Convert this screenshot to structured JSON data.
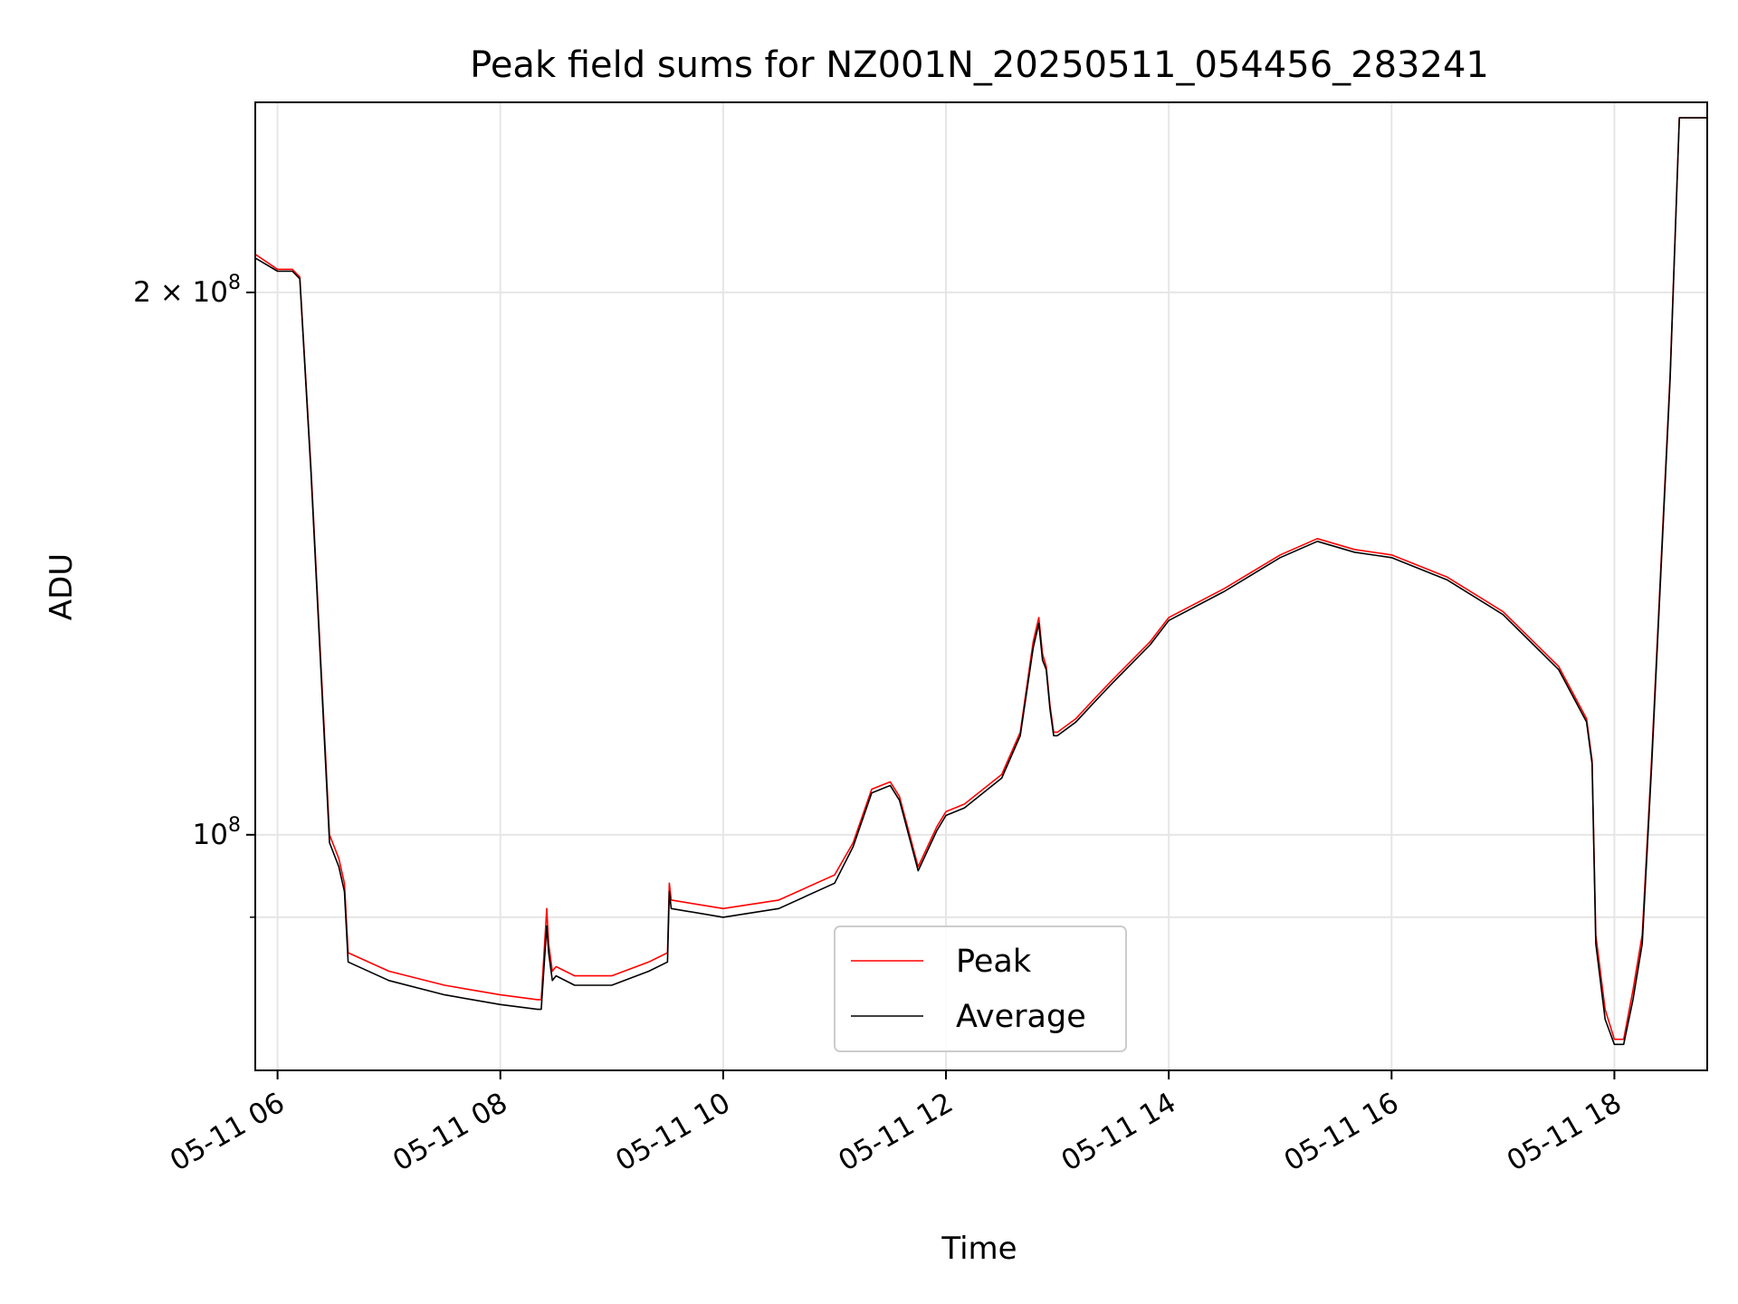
{
  "chart_data": {
    "type": "line",
    "title": "Peak field sums for NZ001N_20250511_054456_283241",
    "xlabel": "Time",
    "ylabel": "ADU",
    "y_scale": "log",
    "ylim": [
      74000000,
      255000000
    ],
    "xlim": [
      "2025-05-11 05:48",
      "2025-05-11 18:50"
    ],
    "grid": true,
    "legend_position": "lower center",
    "x_ticks": [
      {
        "value": "2025-05-11 06:00",
        "label": "05-11 06"
      },
      {
        "value": "2025-05-11 08:00",
        "label": "05-11 08"
      },
      {
        "value": "2025-05-11 10:00",
        "label": "05-11 10"
      },
      {
        "value": "2025-05-11 12:00",
        "label": "05-11 12"
      },
      {
        "value": "2025-05-11 14:00",
        "label": "05-11 14"
      },
      {
        "value": "2025-05-11 16:00",
        "label": "05-11 16"
      },
      {
        "value": "2025-05-11 18:00",
        "label": "05-11 18"
      }
    ],
    "y_ticks": [
      {
        "value": 100000000,
        "base": "10",
        "exp": "8",
        "label": "10^8"
      },
      {
        "value": 200000000,
        "mant": "2 × ",
        "base": "10",
        "exp": "8",
        "label": "2 × 10^8"
      }
    ],
    "y_minor_ticks": [
      90000000
    ],
    "series": [
      {
        "name": "Peak",
        "color": "#ff0000",
        "x": [
          "2025-05-11 05:48",
          "2025-05-11 06:00",
          "2025-05-11 06:08",
          "2025-05-11 06:12",
          "2025-05-11 06:18",
          "2025-05-11 06:26",
          "2025-05-11 06:28",
          "2025-05-11 06:33",
          "2025-05-11 06:36",
          "2025-05-11 06:38",
          "2025-05-11 07:00",
          "2025-05-11 07:30",
          "2025-05-11 08:00",
          "2025-05-11 08:20",
          "2025-05-11 08:22",
          "2025-05-11 08:25",
          "2025-05-11 08:26",
          "2025-05-11 08:28",
          "2025-05-11 08:30",
          "2025-05-11 08:40",
          "2025-05-11 09:00",
          "2025-05-11 09:20",
          "2025-05-11 09:30",
          "2025-05-11 09:31",
          "2025-05-11 09:32",
          "2025-05-11 10:00",
          "2025-05-11 10:30",
          "2025-05-11 11:00",
          "2025-05-11 11:10",
          "2025-05-11 11:20",
          "2025-05-11 11:30",
          "2025-05-11 11:35",
          "2025-05-11 11:45",
          "2025-05-11 11:55",
          "2025-05-11 12:00",
          "2025-05-11 12:10",
          "2025-05-11 12:20",
          "2025-05-11 12:30",
          "2025-05-11 12:40",
          "2025-05-11 12:47",
          "2025-05-11 12:50",
          "2025-05-11 12:52",
          "2025-05-11 12:54",
          "2025-05-11 12:56",
          "2025-05-11 12:58",
          "2025-05-11 13:00",
          "2025-05-11 13:10",
          "2025-05-11 13:20",
          "2025-05-11 13:30",
          "2025-05-11 13:50",
          "2025-05-11 14:00",
          "2025-05-11 14:30",
          "2025-05-11 15:00",
          "2025-05-11 15:20",
          "2025-05-11 15:30",
          "2025-05-11 15:40",
          "2025-05-11 16:00",
          "2025-05-11 16:30",
          "2025-05-11 17:00",
          "2025-05-11 17:30",
          "2025-05-11 17:45",
          "2025-05-11 17:48",
          "2025-05-11 17:50",
          "2025-05-11 17:55",
          "2025-05-11 18:00",
          "2025-05-11 18:05",
          "2025-05-11 18:10",
          "2025-05-11 18:15",
          "2025-05-11 18:20",
          "2025-05-11 18:30",
          "2025-05-11 18:35",
          "2025-05-11 18:50"
        ],
        "y": [
          210000000,
          206000000,
          206000000,
          204000000,
          160000000,
          110000000,
          100000000,
          97000000,
          94000000,
          86000000,
          84000000,
          82500000,
          81500000,
          81000000,
          81000000,
          91000000,
          87000000,
          84000000,
          84500000,
          83500000,
          83500000,
          85000000,
          86000000,
          94000000,
          92000000,
          91000000,
          92000000,
          95000000,
          99000000,
          106000000,
          107000000,
          105000000,
          96000000,
          101000000,
          103000000,
          104000000,
          106000000,
          108000000,
          114000000,
          128000000,
          132000000,
          126000000,
          124000000,
          118000000,
          114000000,
          114000000,
          116000000,
          119000000,
          122000000,
          128000000,
          132000000,
          137000000,
          143000000,
          146000000,
          145000000,
          144000000,
          143000000,
          139000000,
          133000000,
          124000000,
          116000000,
          110000000,
          88000000,
          80000000,
          77000000,
          77000000,
          82000000,
          88000000,
          110000000,
          180000000,
          250000000,
          250000000
        ]
      },
      {
        "name": "Average",
        "color": "#000000",
        "x": [
          "2025-05-11 05:48",
          "2025-05-11 06:00",
          "2025-05-11 06:08",
          "2025-05-11 06:12",
          "2025-05-11 06:18",
          "2025-05-11 06:26",
          "2025-05-11 06:28",
          "2025-05-11 06:33",
          "2025-05-11 06:36",
          "2025-05-11 06:38",
          "2025-05-11 07:00",
          "2025-05-11 07:30",
          "2025-05-11 08:00",
          "2025-05-11 08:20",
          "2025-05-11 08:22",
          "2025-05-11 08:25",
          "2025-05-11 08:26",
          "2025-05-11 08:28",
          "2025-05-11 08:30",
          "2025-05-11 08:40",
          "2025-05-11 09:00",
          "2025-05-11 09:20",
          "2025-05-11 09:30",
          "2025-05-11 09:31",
          "2025-05-11 09:32",
          "2025-05-11 10:00",
          "2025-05-11 10:30",
          "2025-05-11 11:00",
          "2025-05-11 11:10",
          "2025-05-11 11:20",
          "2025-05-11 11:30",
          "2025-05-11 11:35",
          "2025-05-11 11:45",
          "2025-05-11 11:55",
          "2025-05-11 12:00",
          "2025-05-11 12:10",
          "2025-05-11 12:20",
          "2025-05-11 12:30",
          "2025-05-11 12:40",
          "2025-05-11 12:47",
          "2025-05-11 12:50",
          "2025-05-11 12:52",
          "2025-05-11 12:54",
          "2025-05-11 12:56",
          "2025-05-11 12:58",
          "2025-05-11 13:00",
          "2025-05-11 13:10",
          "2025-05-11 13:20",
          "2025-05-11 13:30",
          "2025-05-11 13:50",
          "2025-05-11 14:00",
          "2025-05-11 14:30",
          "2025-05-11 15:00",
          "2025-05-11 15:20",
          "2025-05-11 15:30",
          "2025-05-11 15:40",
          "2025-05-11 16:00",
          "2025-05-11 16:30",
          "2025-05-11 17:00",
          "2025-05-11 17:30",
          "2025-05-11 17:45",
          "2025-05-11 17:48",
          "2025-05-11 17:50",
          "2025-05-11 17:55",
          "2025-05-11 18:00",
          "2025-05-11 18:05",
          "2025-05-11 18:10",
          "2025-05-11 18:15",
          "2025-05-11 18:20",
          "2025-05-11 18:30",
          "2025-05-11 18:35",
          "2025-05-11 18:50"
        ],
        "y": [
          209000000,
          205500000,
          205500000,
          203500000,
          159000000,
          109000000,
          99000000,
          96000000,
          93000000,
          85000000,
          83000000,
          81500000,
          80500000,
          80000000,
          80000000,
          89000000,
          86000000,
          83000000,
          83500000,
          82500000,
          82500000,
          84000000,
          85000000,
          93000000,
          91000000,
          90000000,
          91000000,
          94000000,
          98500000,
          105500000,
          106500000,
          104500000,
          95500000,
          100500000,
          102500000,
          103500000,
          105500000,
          107500000,
          113500000,
          127000000,
          131000000,
          125000000,
          123500000,
          117500000,
          113500000,
          113500000,
          115500000,
          118500000,
          121500000,
          127500000,
          131500000,
          136500000,
          142500000,
          145500000,
          144500000,
          143500000,
          142500000,
          138500000,
          132500000,
          123500000,
          115500000,
          109500000,
          87000000,
          79000000,
          76500000,
          76500000,
          81000000,
          87000000,
          109000000,
          179000000,
          250000000,
          250000000
        ]
      }
    ]
  }
}
